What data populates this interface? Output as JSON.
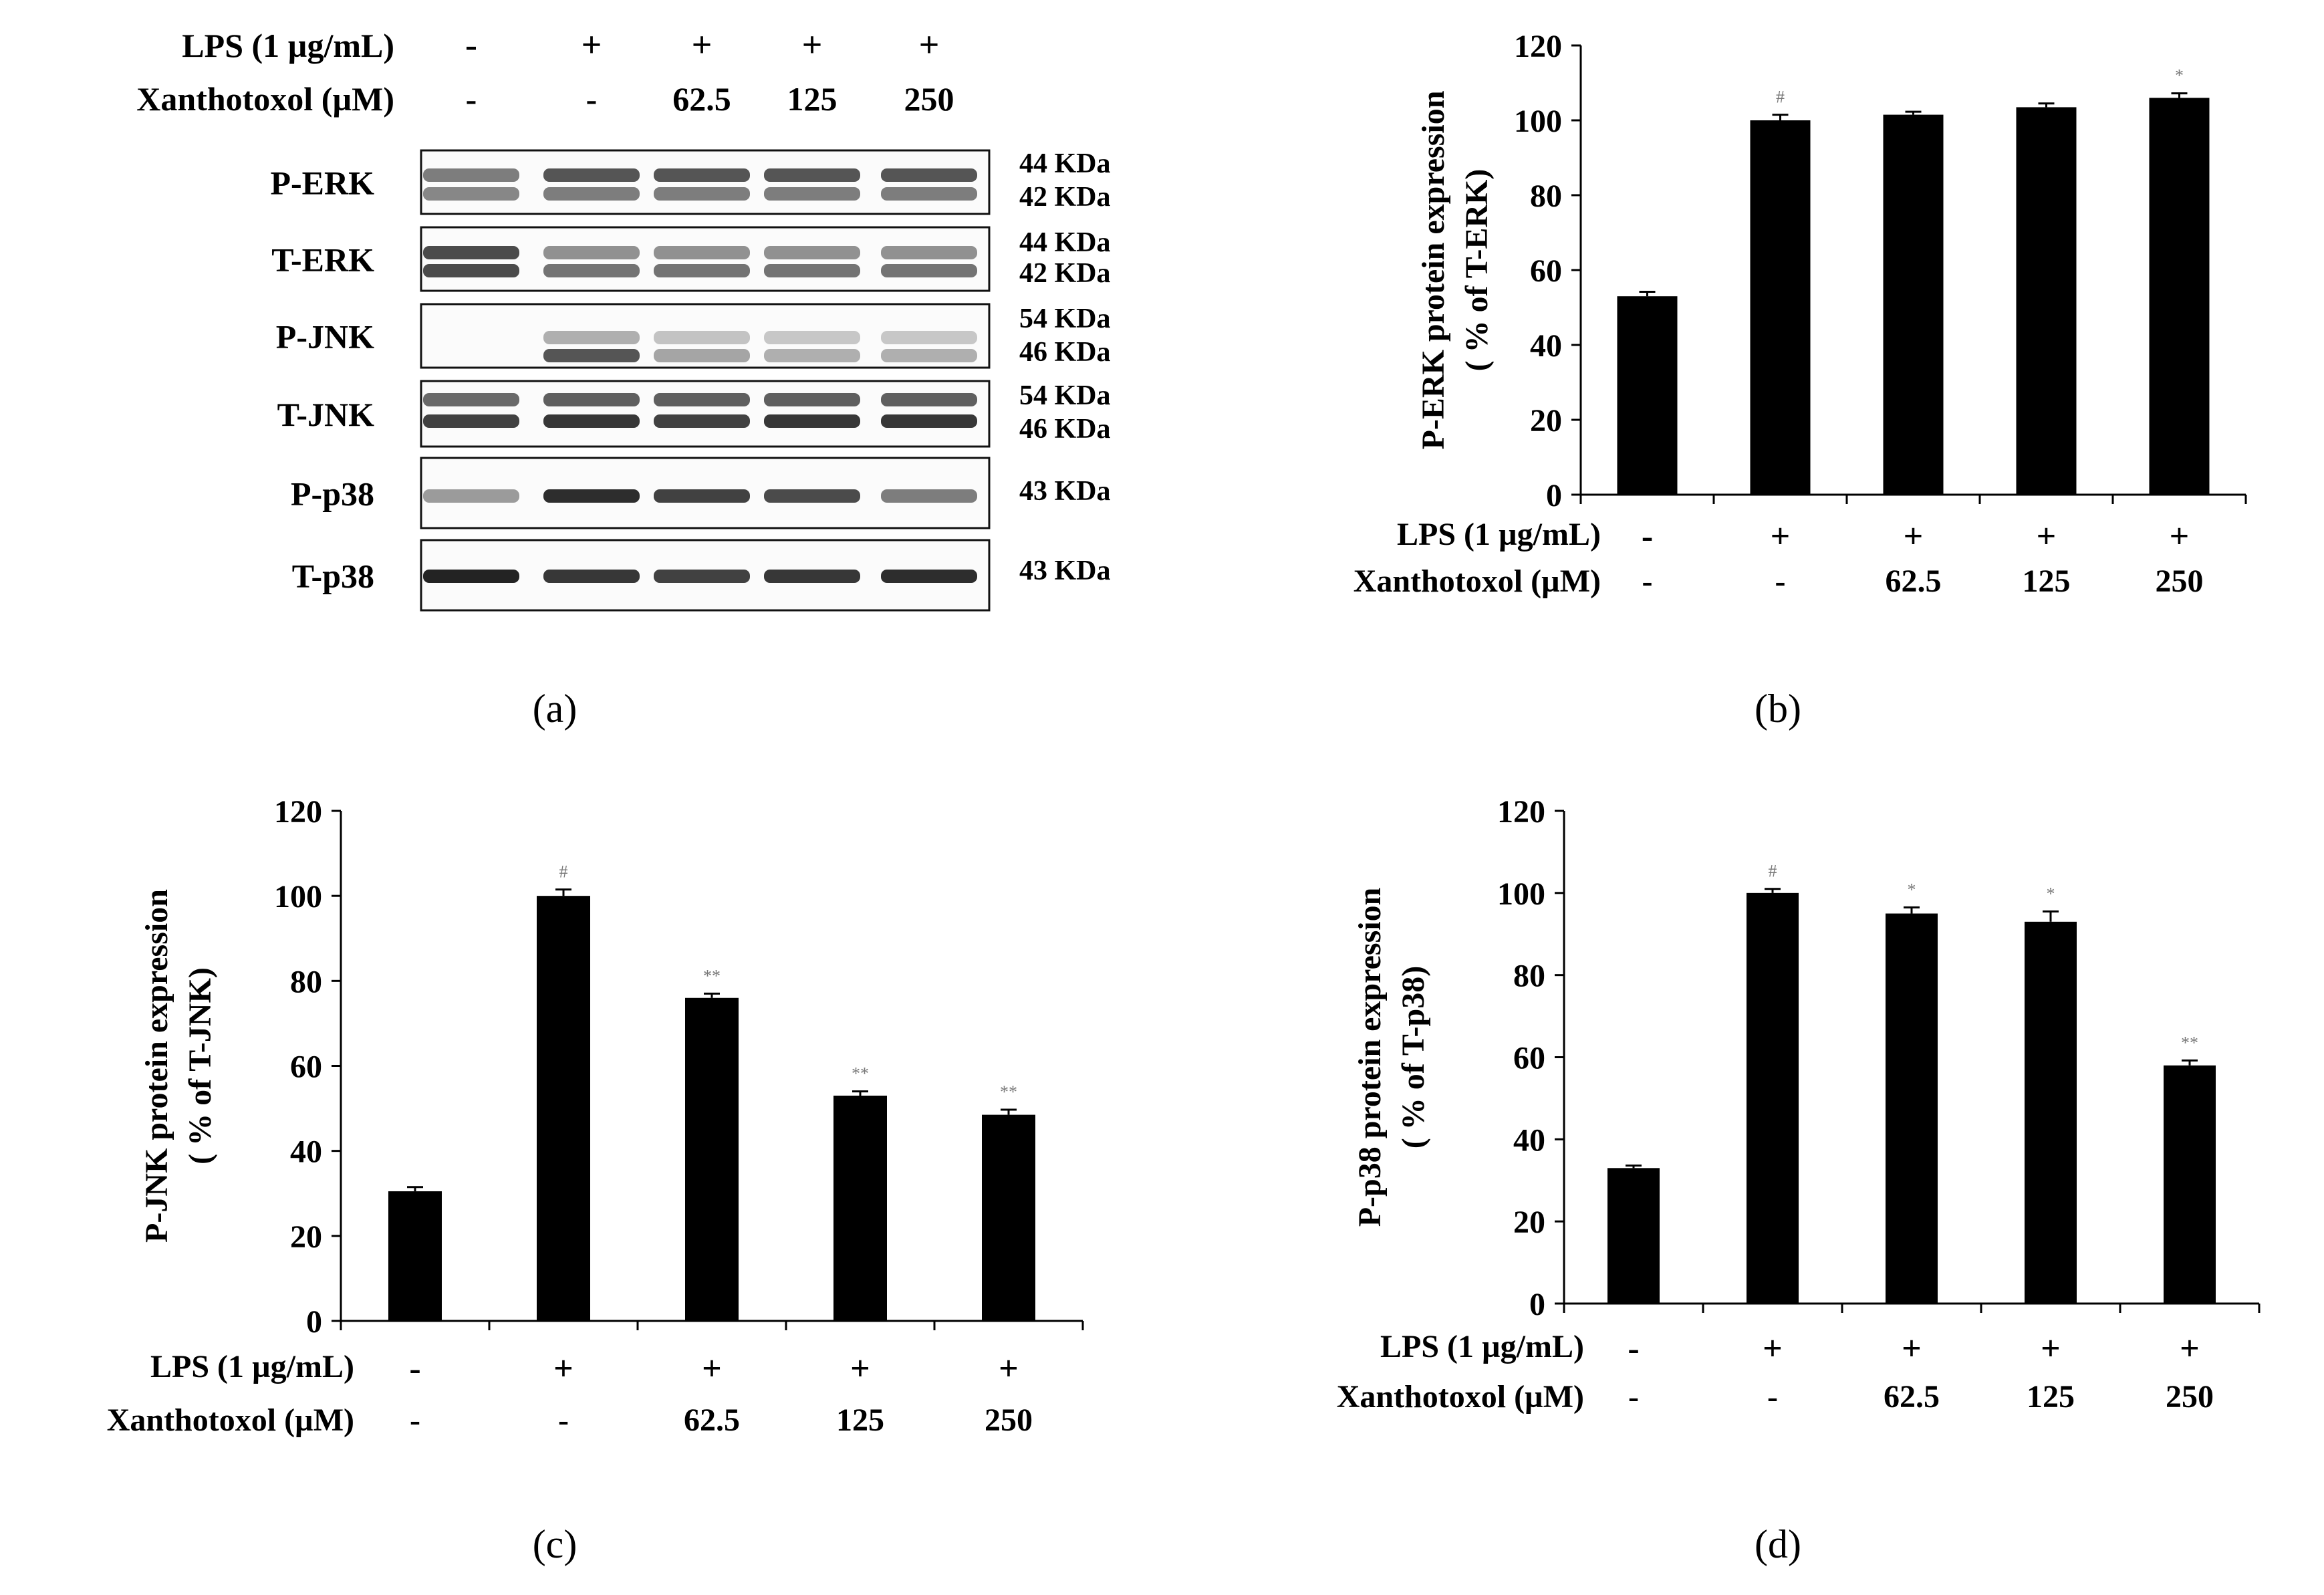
{
  "chart_data": [
    {
      "panel": "a",
      "type": "western-blot",
      "caption": "(a)",
      "treatment_header": {
        "row1_label": "LPS (1 µg/mL)",
        "row2_label": "Xanthotoxol (µM)",
        "lps": [
          "-",
          "+",
          "+",
          "+",
          "+"
        ],
        "xanthotoxol": [
          "-",
          "-",
          "62.5",
          "125",
          "250"
        ]
      },
      "blots": [
        {
          "label": "P-ERK",
          "kda": [
            "44 KDa",
            "42 KDa"
          ],
          "bands": [
            {
              "intensity": [
                0.55,
                0.75,
                0.75,
                0.75,
                0.75
              ]
            },
            {
              "intensity": [
                0.5,
                0.55,
                0.55,
                0.55,
                0.55
              ]
            }
          ]
        },
        {
          "label": "T-ERK",
          "kda": [
            "44 KDa",
            "42 KDa"
          ],
          "bands": [
            {
              "intensity": [
                0.8,
                0.45,
                0.45,
                0.45,
                0.45
              ]
            },
            {
              "intensity": [
                0.8,
                0.6,
                0.6,
                0.6,
                0.6
              ]
            }
          ]
        },
        {
          "label": "P-JNK",
          "kda": [
            "54 KDa",
            "46 KDa"
          ],
          "bands": [
            {
              "intensity": [
                0.0,
                0.3,
                0.2,
                0.18,
                0.18
              ]
            },
            {
              "intensity": [
                0.0,
                0.75,
                0.35,
                0.3,
                0.3
              ]
            }
          ]
        },
        {
          "label": "T-JNK",
          "kda": [
            "54 KDa",
            "46 KDa"
          ],
          "bands": [
            {
              "intensity": [
                0.65,
                0.7,
                0.7,
                0.7,
                0.7
              ]
            },
            {
              "intensity": [
                0.85,
                0.9,
                0.85,
                0.9,
                0.9
              ]
            }
          ]
        },
        {
          "label": "P-p38",
          "kda": [
            "43 KDa"
          ],
          "bands": [
            {
              "intensity": [
                0.4,
                0.95,
                0.85,
                0.8,
                0.55
              ]
            }
          ]
        },
        {
          "label": "T-p38",
          "kda": [
            "43 KDa"
          ],
          "bands": [
            {
              "intensity": [
                1.0,
                0.9,
                0.85,
                0.9,
                0.95
              ]
            }
          ]
        }
      ]
    },
    {
      "panel": "b",
      "type": "bar",
      "caption": "(b)",
      "ylabel": [
        "P-ERK protein expression",
        "( % of T-ERK)"
      ],
      "ylim": [
        0,
        120
      ],
      "yticks": [
        0,
        20,
        40,
        60,
        80,
        100,
        120
      ],
      "values": [
        53,
        100,
        101.5,
        103.5,
        106
      ],
      "errors": [
        1.2,
        1.5,
        0.8,
        1.0,
        1.2
      ],
      "significance": [
        "",
        "#",
        "",
        "",
        "*"
      ],
      "row1_label": "LPS (1 µg/mL)",
      "row2_label": "Xanthotoxol (µM)",
      "lps": [
        "-",
        "+",
        "+",
        "+",
        "+"
      ],
      "xanthotoxol": [
        "-",
        "-",
        "62.5",
        "125",
        "250"
      ]
    },
    {
      "panel": "c",
      "type": "bar",
      "caption": "(c)",
      "ylabel": [
        "P-JNK protein expression",
        "( % of T-JNK)"
      ],
      "ylim": [
        0,
        120
      ],
      "yticks": [
        0,
        20,
        40,
        60,
        80,
        100,
        120
      ],
      "values": [
        30.5,
        100,
        76,
        53,
        48.5
      ],
      "errors": [
        1.0,
        1.5,
        1.0,
        1.0,
        1.2
      ],
      "significance": [
        "",
        "#",
        "**",
        "**",
        "**"
      ],
      "row1_label": "LPS (1 µg/mL)",
      "row2_label": "Xanthotoxol (µM)",
      "lps": [
        "-",
        "+",
        "+",
        "+",
        "+"
      ],
      "xanthotoxol": [
        "-",
        "-",
        "62.5",
        "125",
        "250"
      ]
    },
    {
      "panel": "d",
      "type": "bar",
      "caption": "(d)",
      "ylabel": [
        "P-p38 protein expression",
        "( % of T-p38)"
      ],
      "ylim": [
        0,
        120
      ],
      "yticks": [
        0,
        20,
        40,
        60,
        80,
        100,
        120
      ],
      "values": [
        33,
        100,
        95,
        93,
        58
      ],
      "errors": [
        0.6,
        1.0,
        1.5,
        2.5,
        1.2
      ],
      "significance": [
        "",
        "#",
        "*",
        "*",
        "**"
      ],
      "row1_label": "LPS (1 µg/mL)",
      "row2_label": "Xanthotoxol (µM)",
      "lps": [
        "-",
        "+",
        "+",
        "+",
        "+"
      ],
      "xanthotoxol": [
        "-",
        "-",
        "62.5",
        "125",
        "250"
      ]
    }
  ]
}
